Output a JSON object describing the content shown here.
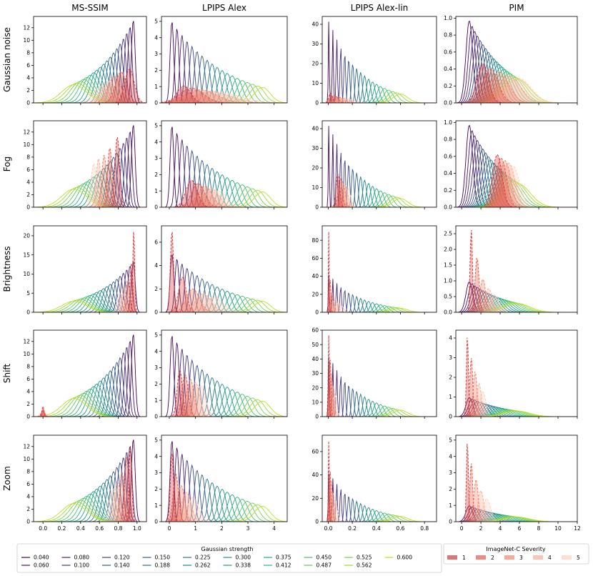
{
  "chart_data": {
    "type": "density-grid",
    "columns": [
      "MS-SSIM",
      "LPIPS Alex",
      "LPIPS Alex-lin",
      "PIM"
    ],
    "rows": [
      "Gaussian noise",
      "Fog",
      "Brightness",
      "Shift",
      "Zoom"
    ],
    "x_ticks": {
      "MS-SSIM": [
        "0.0",
        "0.2",
        "0.4",
        "0.6",
        "0.8",
        "1.0"
      ],
      "LPIPS Alex": [
        "0",
        "1",
        "2",
        "3",
        "4"
      ],
      "LPIPS Alex-lin": [
        "0.0",
        "0.2",
        "0.4",
        "0.6",
        "0.8"
      ],
      "PIM": [
        "0",
        "2",
        "4",
        "6",
        "8",
        "10",
        "12"
      ]
    },
    "x_ranges": {
      "MS-SSIM": [
        -0.1,
        1.1
      ],
      "LPIPS Alex": [
        -0.3,
        4.5
      ],
      "LPIPS Alex-lin": [
        -0.05,
        0.9
      ],
      "PIM": [
        -0.6,
        12
      ]
    },
    "y_ticks": [
      [
        [
          "0",
          "2",
          "4",
          "6",
          "8",
          "10",
          "12"
        ],
        [
          "0",
          "1",
          "2",
          "3",
          "4",
          "5"
        ],
        [
          "0",
          "10",
          "20",
          "30",
          "40"
        ],
        [
          "0.0",
          "0.2",
          "0.4",
          "0.6",
          "0.8",
          "1.0"
        ]
      ],
      [
        [
          "0",
          "2",
          "4",
          "6",
          "8",
          "10",
          "12"
        ],
        [
          "0",
          "1",
          "2",
          "3",
          "4",
          "5"
        ],
        [
          "0",
          "10",
          "20",
          "30",
          "40"
        ],
        [
          "0.0",
          "0.2",
          "0.4",
          "0.6",
          "0.8",
          "1.0"
        ]
      ],
      [
        [
          "0",
          "5",
          "10",
          "15",
          "20"
        ],
        [
          "0",
          "2",
          "4",
          "6"
        ],
        [
          "0",
          "20",
          "40",
          "60",
          "80"
        ],
        [
          "0.0",
          "0.5",
          "1.0",
          "1.5",
          "2.0",
          "2.5"
        ]
      ],
      [
        [
          "0",
          "2",
          "4",
          "6",
          "8",
          "10",
          "12"
        ],
        [
          "0",
          "1",
          "2",
          "3",
          "4",
          "5"
        ],
        [
          "0",
          "10",
          "20",
          "30",
          "40",
          "50",
          "60"
        ],
        [
          "0",
          "1",
          "2",
          "3",
          "4"
        ]
      ],
      [
        [
          "0",
          "2",
          "4",
          "6",
          "8",
          "10",
          "12"
        ],
        [
          "0",
          "1",
          "2",
          "3",
          "4",
          "5"
        ],
        [
          "0",
          "20",
          "40",
          "60"
        ],
        [
          "0",
          "1",
          "2",
          "3",
          "4",
          "5"
        ]
      ]
    ],
    "y_ranges": [
      [
        [
          0,
          13.8
        ],
        [
          0,
          5.3
        ],
        [
          0,
          44
        ],
        [
          0,
          1.02
        ]
      ],
      [
        [
          0,
          13.8
        ],
        [
          0,
          5.3
        ],
        [
          0,
          44
        ],
        [
          0,
          1.02
        ]
      ],
      [
        [
          0,
          22.6
        ],
        [
          0,
          7.4
        ],
        [
          0,
          96
        ],
        [
          0,
          2.75
        ]
      ],
      [
        [
          0,
          13.8
        ],
        [
          0,
          5.3
        ],
        [
          0,
          60
        ],
        [
          0,
          4.4
        ]
      ],
      [
        [
          0,
          13.8
        ],
        [
          0,
          5.3
        ],
        [
          0,
          74
        ],
        [
          0,
          5.3
        ]
      ]
    ],
    "gaussian_strength": {
      "title": "Gaussian strength",
      "values": [
        "0.040",
        "0.060",
        "0.080",
        "0.100",
        "0.120",
        "0.140",
        "0.150",
        "0.188",
        "0.225",
        "0.262",
        "0.300",
        "0.338",
        "0.375",
        "0.412",
        "0.450",
        "0.487",
        "0.525",
        "0.562",
        "0.600"
      ],
      "colors": [
        "#440154",
        "#471365",
        "#482475",
        "#463480",
        "#414487",
        "#3b528b",
        "#355f8d",
        "#2f6c8e",
        "#2a788e",
        "#25848e",
        "#21918c",
        "#1e9c89",
        "#22a884",
        "#2fb47c",
        "#44bf70",
        "#5ec962",
        "#7ad151",
        "#9bd93c",
        "#bddf26"
      ],
      "peaks": {
        "MS-SSIM": {
          "x": [
            0.96,
            0.33
          ],
          "y": [
            13.2,
            2.9
          ],
          "w": [
            0.02,
            0.13
          ]
        },
        "LPIPS Alex": {
          "x": [
            0.1,
            3.55
          ],
          "y": [
            5.0,
            0.95
          ],
          "w": [
            0.07,
            0.3
          ]
        },
        "LPIPS Alex-lin": {
          "x": [
            0.005,
            0.6
          ],
          "y": [
            42,
            4.5
          ],
          "w": [
            0.004,
            0.06
          ]
        },
        "PIM": {
          "x": [
            0.8,
            5.8
          ],
          "y": [
            0.97,
            0.28
          ],
          "w": [
            0.35,
            1.3
          ]
        }
      }
    },
    "severity": {
      "title": "ImageNet-C Severity",
      "labels": [
        "1",
        "2",
        "3",
        "4",
        "5"
      ],
      "colors": [
        "#d13c3c",
        "#e55a4a",
        "#f4846c",
        "#fbab92",
        "#fdd0bd"
      ],
      "peaks": [
        [
          {
            "x": [
              0.92,
              0.83,
              0.76,
              0.69,
              0.62
            ],
            "y": [
              5.4,
              4.9,
              4.2,
              3.4,
              2.7
            ],
            "w": [
              0.05,
              0.06,
              0.07,
              0.07,
              0.08
            ]
          },
          {
            "x": [
              0.55,
              0.85,
              1.2,
              1.6,
              2.0
            ],
            "y": [
              1.05,
              0.9,
              0.8,
              0.7,
              0.6
            ],
            "w": [
              0.25,
              0.45,
              0.6,
              0.7,
              0.8
            ]
          },
          {
            "x": [
              0.02,
              0.05,
              0.08,
              0.11,
              0.15
            ],
            "y": [
              5,
              4,
              3.2,
              2.6,
              2.1
            ],
            "w": [
              0.015,
              0.03,
              0.04,
              0.05,
              0.06
            ]
          },
          {
            "x": [
              2.2,
              3.0,
              3.9,
              4.9,
              5.9
            ],
            "y": [
              0.46,
              0.4,
              0.36,
              0.32,
              0.29
            ],
            "w": [
              0.6,
              0.8,
              1.0,
              1.2,
              1.3
            ]
          }
        ],
        [
          {
            "x": [
              0.79,
              0.71,
              0.65,
              0.59,
              0.54
            ],
            "y": [
              11.2,
              9.5,
              8.4,
              7.8,
              7.0
            ],
            "w": [
              0.025,
              0.025,
              0.025,
              0.025,
              0.03
            ]
          },
          {
            "x": [
              0.85,
              1.1,
              1.35,
              1.6,
              1.85
            ],
            "y": [
              1.65,
              1.45,
              1.3,
              1.15,
              1.0
            ],
            "w": [
              0.22,
              0.25,
              0.28,
              0.3,
              0.32
            ]
          },
          {
            "x": [
              0.08,
              0.1,
              0.12,
              0.14,
              0.16
            ],
            "y": [
              17,
              15,
              13,
              11.5,
              10
            ],
            "w": [
              0.015,
              0.017,
              0.02,
              0.022,
              0.025
            ]
          },
          {
            "x": [
              3.7,
              4.1,
              4.5,
              4.9,
              5.3
            ],
            "y": [
              0.62,
              0.58,
              0.55,
              0.52,
              0.49
            ],
            "w": [
              0.5,
              0.55,
              0.6,
              0.65,
              0.7
            ]
          }
        ],
        [
          {
            "x": [
              0.965,
              0.94,
              0.9,
              0.86,
              0.82
            ],
            "y": [
              21.5,
              13.0,
              8.5,
              6.5,
              5.0
            ],
            "w": [
              0.01,
              0.015,
              0.02,
              0.025,
              0.03
            ]
          },
          {
            "x": [
              0.1,
              0.5,
              0.9,
              1.3,
              1.7
            ],
            "y": [
              7.0,
              3.0,
              2.0,
              1.6,
              1.3
            ],
            "w": [
              0.06,
              0.15,
              0.25,
              0.3,
              0.35
            ]
          },
          {
            "x": [
              0.005,
              0.015,
              0.03,
              0.06,
              0.09
            ],
            "y": [
              92,
              40,
              22,
              15,
              10
            ],
            "w": [
              0.003,
              0.006,
              0.01,
              0.02,
              0.03
            ]
          },
          {
            "x": [
              1.0,
              1.6,
              2.2,
              2.8,
              3.4
            ],
            "y": [
              2.65,
              1.75,
              1.05,
              0.75,
              0.55
            ],
            "w": [
              0.12,
              0.2,
              0.3,
              0.4,
              0.5
            ]
          }
        ],
        [
          {
            "x": [
              0.0,
              0.0,
              0.0,
              0.0,
              0.0
            ],
            "y": [
              1.7,
              1.2,
              0.9,
              0.7,
              0.5
            ],
            "w": [
              0.01,
              0.015,
              0.02,
              0.025,
              0.03
            ]
          },
          {
            "x": [
              0.4,
              0.6,
              0.8,
              1.0,
              1.2
            ],
            "y": [
              2.85,
              2.6,
              2.3,
              2.1,
              1.9
            ],
            "w": [
              0.1,
              0.12,
              0.14,
              0.16,
              0.18
            ]
          },
          {
            "x": [
              0.005,
              0.015,
              0.025,
              0.04,
              0.055
            ],
            "y": [
              57,
              42,
              30,
              22,
              16
            ],
            "w": [
              0.005,
              0.008,
              0.01,
              0.013,
              0.016
            ]
          },
          {
            "x": [
              0.6,
              1.0,
              1.4,
              1.8,
              2.2
            ],
            "y": [
              4.2,
              3.0,
              2.3,
              1.7,
              1.3
            ],
            "w": [
              0.1,
              0.15,
              0.2,
              0.25,
              0.3
            ]
          }
        ],
        [
          {
            "x": [
              0.93,
              0.89,
              0.84,
              0.79,
              0.74
            ],
            "y": [
              12.0,
              10.5,
              8.0,
              6.5,
              5.3
            ],
            "w": [
              0.015,
              0.02,
              0.025,
              0.03,
              0.035
            ]
          },
          {
            "x": [
              0.1,
              0.25,
              0.45,
              0.65,
              0.9
            ],
            "y": [
              4.25,
              2.9,
              2.2,
              1.8,
              1.5
            ],
            "w": [
              0.06,
              0.1,
              0.14,
              0.18,
              0.22
            ]
          },
          {
            "x": [
              0.005,
              0.015,
              0.025,
              0.04,
              0.06
            ],
            "y": [
              70,
              48,
              35,
              25,
              18
            ],
            "w": [
              0.004,
              0.006,
              0.009,
              0.012,
              0.016
            ]
          },
          {
            "x": [
              0.6,
              1.0,
              1.5,
              2.0,
              2.6
            ],
            "y": [
              5.0,
              3.6,
              2.6,
              1.9,
              1.4
            ],
            "w": [
              0.1,
              0.15,
              0.22,
              0.3,
              0.4
            ]
          }
        ]
      ]
    }
  }
}
